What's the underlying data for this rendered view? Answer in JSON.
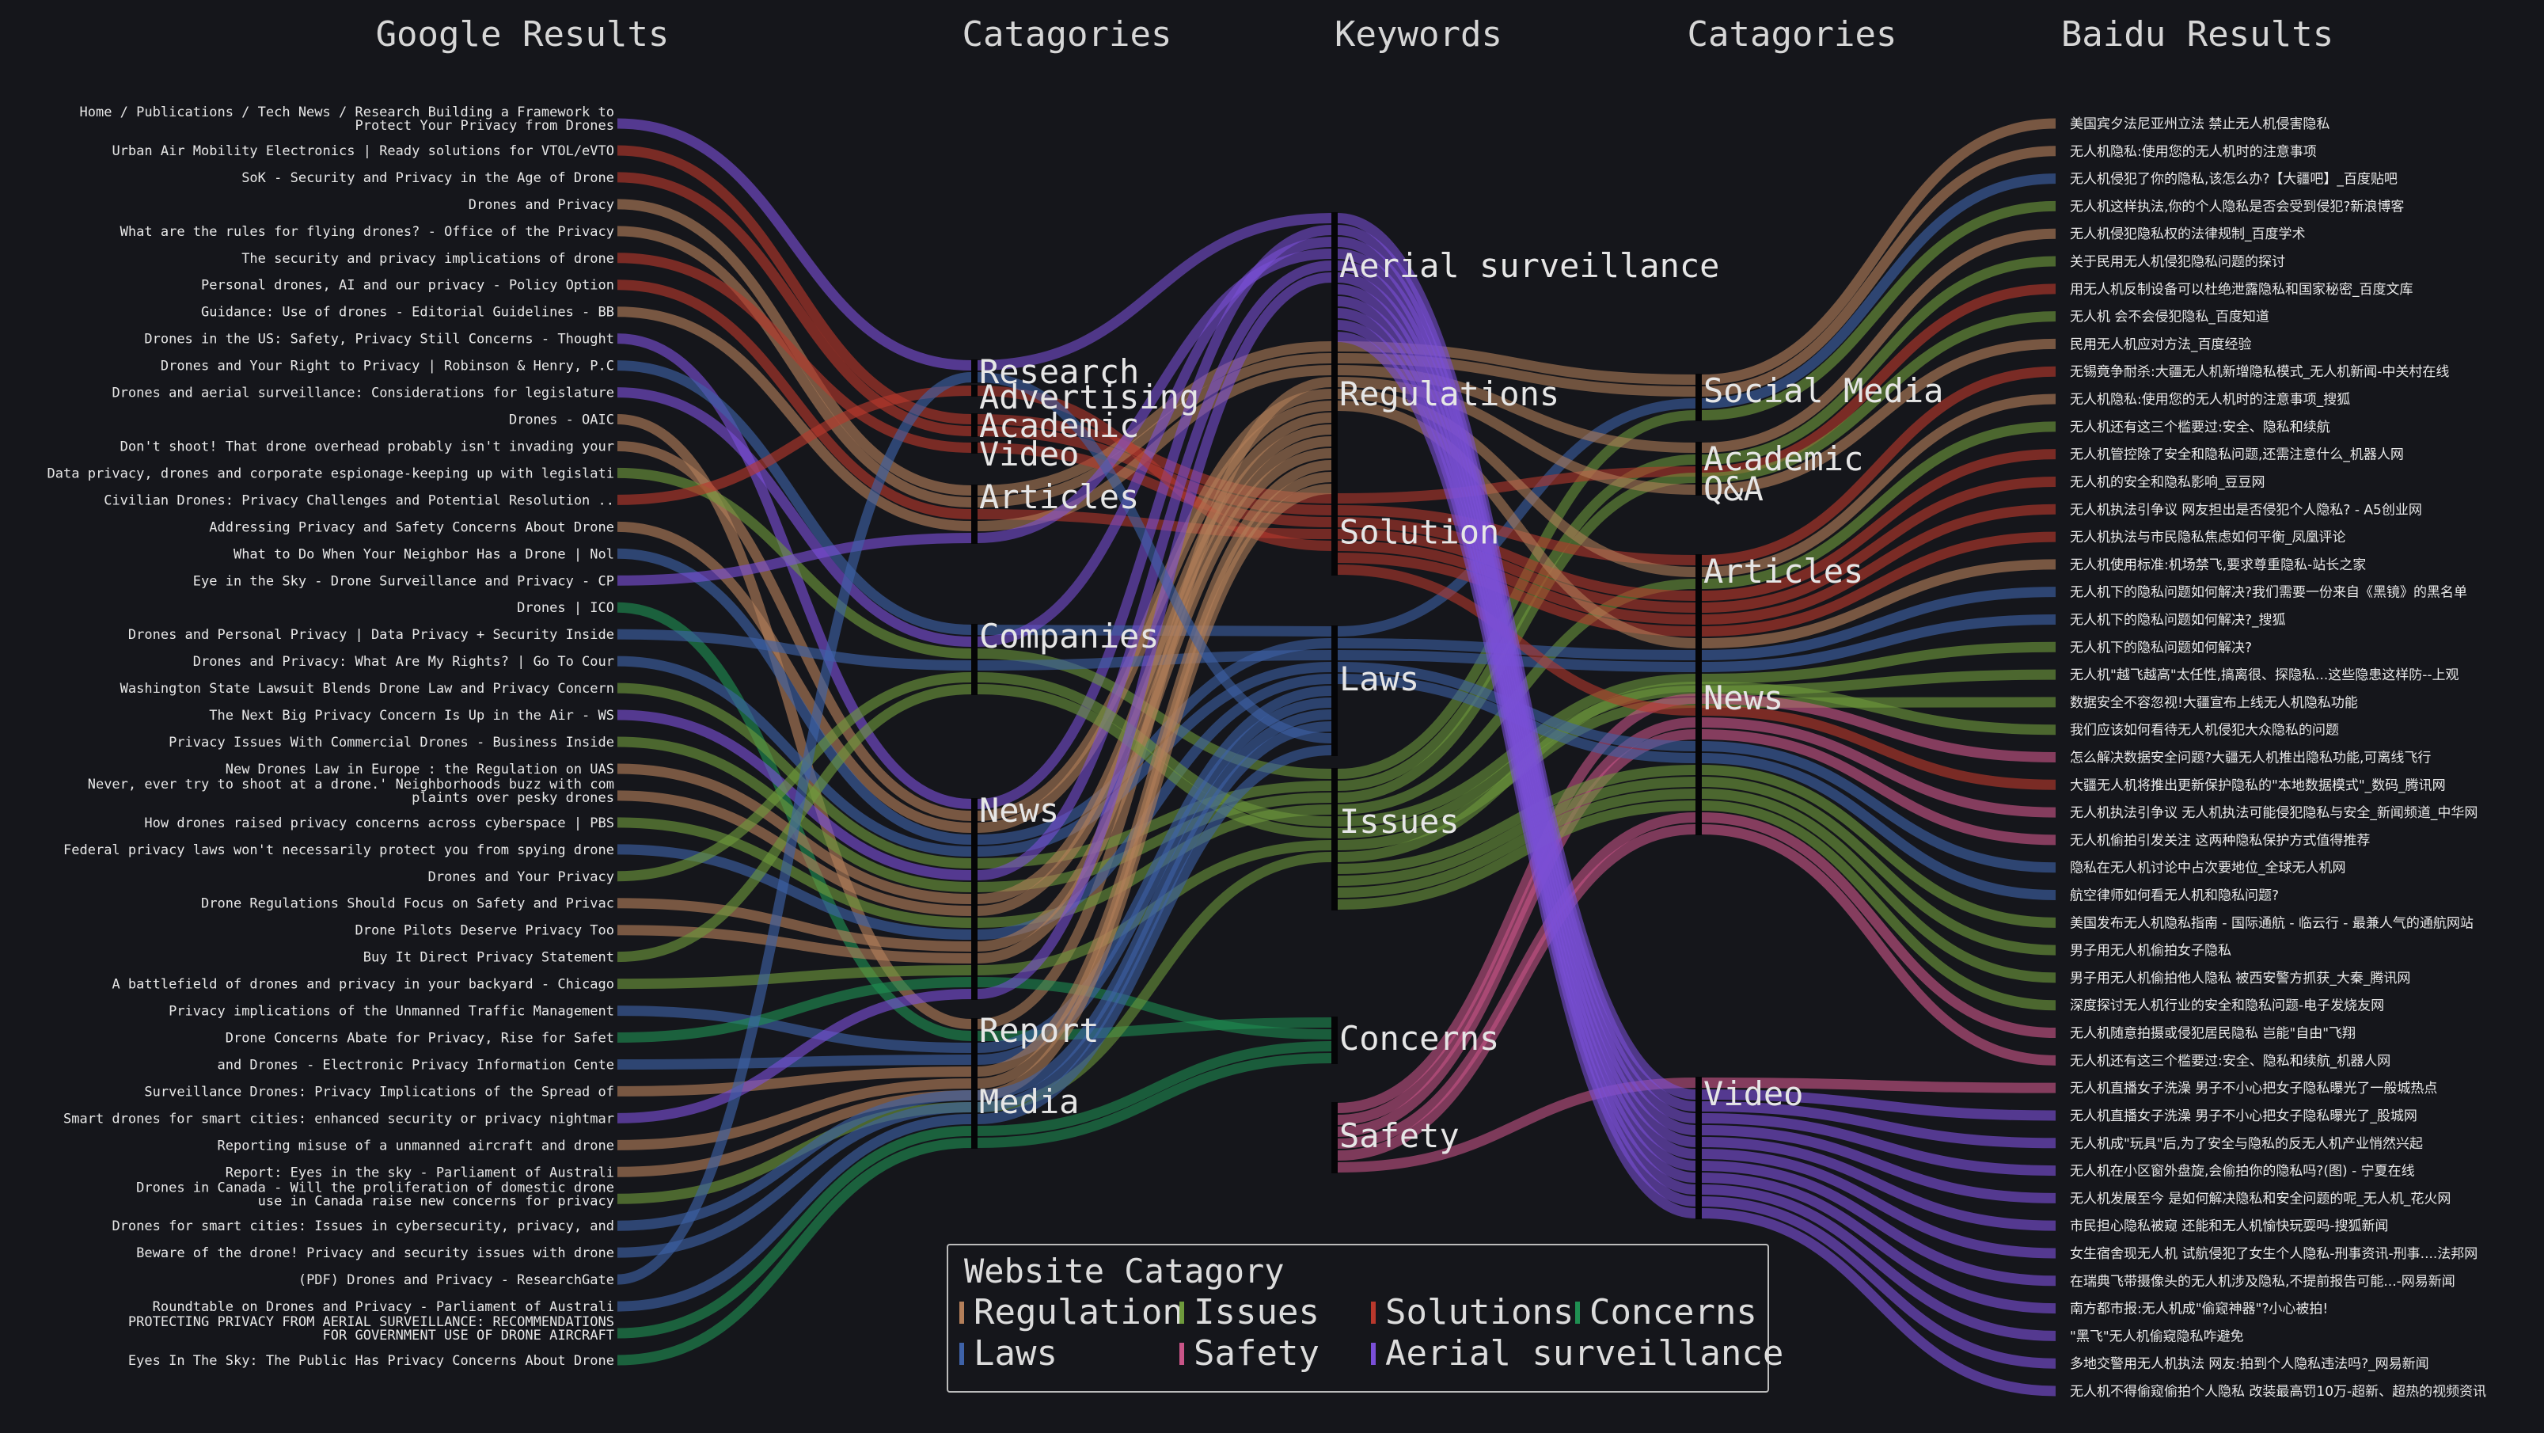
{
  "headers": {
    "google": "Google Results",
    "categories_left": "Catagories",
    "keywords": "Keywords",
    "categories_right": "Catagories",
    "baidu": "Baidu Results"
  },
  "colors": {
    "regulation": "#b47f5a",
    "issues": "#6e9a3c",
    "solutions": "#b8382c",
    "concerns": "#1f8f52",
    "laws": "#3e62a8",
    "safety": "#c95588",
    "aerial": "#7a4fd8"
  },
  "google_results": [
    {
      "lines": [
        "Home / Publications / Tech News / Research Building a Framework to",
        "Protect Your Privacy from Drones"
      ],
      "cat": 0,
      "kw": 0,
      "color": "aerial"
    },
    {
      "lines": [
        "Urban Air Mobility Electronics | Ready solutions for VTOL/eVTO"
      ],
      "cat": 2,
      "kw": 2,
      "color": "solutions"
    },
    {
      "lines": [
        "SoK - Security and Privacy in the Age of Drone"
      ],
      "cat": 2,
      "kw": 2,
      "color": "solutions"
    },
    {
      "lines": [
        "Drones and Privacy"
      ],
      "cat": 4,
      "kw": 1,
      "color": "regulation"
    },
    {
      "lines": [
        "What are the rules for flying drones? - Office of the Privacy"
      ],
      "cat": 4,
      "kw": 1,
      "color": "regulation"
    },
    {
      "lines": [
        "The security and privacy implications of drone"
      ],
      "cat": 3,
      "kw": 2,
      "color": "solutions"
    },
    {
      "lines": [
        "Personal drones, AI and our privacy - Policy Option"
      ],
      "cat": 4,
      "kw": 2,
      "color": "solutions"
    },
    {
      "lines": [
        "Guidance: Use of drones - Editorial Guidelines - BB"
      ],
      "cat": 4,
      "kw": 1,
      "color": "regulation"
    },
    {
      "lines": [
        "Drones in the US: Safety, Privacy Still Concerns - Thought"
      ],
      "cat": 6,
      "kw": 0,
      "color": "aerial"
    },
    {
      "lines": [
        "Drones and Your Right to Privacy | Robinson & Henry, P.C"
      ],
      "cat": 5,
      "kw": 3,
      "color": "laws"
    },
    {
      "lines": [
        "Drones and aerial surveillance: Considerations for legislature"
      ],
      "cat": 5,
      "kw": 0,
      "color": "aerial"
    },
    {
      "lines": [
        "Drones - OAIC"
      ],
      "cat": 7,
      "kw": 1,
      "color": "regulation"
    },
    {
      "lines": [
        "Don't shoot! That drone overhead probably isn't invading your"
      ],
      "cat": 6,
      "kw": 1,
      "color": "regulation"
    },
    {
      "lines": [
        "Data privacy, drones and corporate espionage-keeping up with legislati"
      ],
      "cat": 5,
      "kw": 4,
      "color": "issues"
    },
    {
      "lines": [
        "Civilian Drones: Privacy Challenges and Potential Resolution .."
      ],
      "cat": 1,
      "kw": 2,
      "color": "solutions"
    },
    {
      "lines": [
        "Addressing Privacy and Safety Concerns About Drone"
      ],
      "cat": 6,
      "kw": 1,
      "color": "regulation"
    },
    {
      "lines": [
        "What to Do When Your Neighbor Has a Drone | Nol"
      ],
      "cat": 6,
      "kw": 3,
      "color": "laws"
    },
    {
      "lines": [
        "Eye in the Sky - Drone Surveillance and Privacy - CP"
      ],
      "cat": 4,
      "kw": 0,
      "color": "aerial"
    },
    {
      "lines": [
        "Drones | ICO"
      ],
      "cat": 7,
      "kw": 5,
      "color": "concerns"
    },
    {
      "lines": [
        "Drones and Personal Privacy | Data Privacy + Security Inside"
      ],
      "cat": 5,
      "kw": 3,
      "color": "laws"
    },
    {
      "lines": [
        "Drones and Privacy: What Are My Rights? | Go To Cour"
      ],
      "cat": 6,
      "kw": 3,
      "color": "laws"
    },
    {
      "lines": [
        "Washington State Lawsuit Blends Drone Law and Privacy Concern"
      ],
      "cat": 6,
      "kw": 4,
      "color": "issues"
    },
    {
      "lines": [
        "The Next Big Privacy Concern Is Up in the Air - WS"
      ],
      "cat": 6,
      "kw": 0,
      "color": "aerial"
    },
    {
      "lines": [
        "Privacy Issues With Commercial Drones - Business Inside"
      ],
      "cat": 6,
      "kw": 4,
      "color": "issues"
    },
    {
      "lines": [
        "New Drones Law in Europe : the Regulation on UAS"
      ],
      "cat": 6,
      "kw": 1,
      "color": "regulation"
    },
    {
      "lines": [
        "Never, ever try to shoot at a drone.' Neighborhoods buzz with com",
        "plaints over pesky drones"
      ],
      "cat": 6,
      "kw": 1,
      "color": "regulation"
    },
    {
      "lines": [
        "How drones raised privacy concerns across cyberspace | PBS"
      ],
      "cat": 6,
      "kw": 4,
      "color": "issues"
    },
    {
      "lines": [
        "Federal privacy laws won't necessarily protect you from spying drone"
      ],
      "cat": 6,
      "kw": 3,
      "color": "laws"
    },
    {
      "lines": [
        "Drones and Your Privacy"
      ],
      "cat": 5,
      "kw": 4,
      "color": "issues"
    },
    {
      "lines": [
        "Drone Regulations Should Focus on Safety and Privac"
      ],
      "cat": 6,
      "kw": 1,
      "color": "regulation"
    },
    {
      "lines": [
        "Drone Pilots Deserve Privacy Too"
      ],
      "cat": 6,
      "kw": 1,
      "color": "regulation"
    },
    {
      "lines": [
        "Buy It Direct Privacy Statement"
      ],
      "cat": 5,
      "kw": 4,
      "color": "issues"
    },
    {
      "lines": [
        "A battlefield of drones and privacy in your backyard - Chicago"
      ],
      "cat": 6,
      "kw": 4,
      "color": "issues"
    },
    {
      "lines": [
        "Privacy implications of the Unmanned Traffic Management"
      ],
      "cat": 7,
      "kw": 3,
      "color": "laws"
    },
    {
      "lines": [
        "Drone Concerns Abate for Privacy, Rise for Safet"
      ],
      "cat": 6,
      "kw": 5,
      "color": "concerns"
    },
    {
      "lines": [
        "and Drones - Electronic Privacy Information Cente"
      ],
      "cat": 7,
      "kw": 3,
      "color": "laws"
    },
    {
      "lines": [
        "Surveillance Drones: Privacy Implications of the Spread of"
      ],
      "cat": 7,
      "kw": 1,
      "color": "regulation"
    },
    {
      "lines": [
        "Smart drones for smart cities: enhanced security or privacy nightmar"
      ],
      "cat": 6,
      "kw": 0,
      "color": "aerial"
    },
    {
      "lines": [
        "Reporting misuse of a unmanned aircraft and drone"
      ],
      "cat": 7,
      "kw": 1,
      "color": "regulation"
    },
    {
      "lines": [
        "Report: Eyes in the sky - Parliament of Australi"
      ],
      "cat": 7,
      "kw": 1,
      "color": "regulation"
    },
    {
      "lines": [
        "Drones in Canada - Will the proliferation of domestic drone",
        "use in Canada raise new concerns for privacy"
      ],
      "cat": 7,
      "kw": 4,
      "color": "issues"
    },
    {
      "lines": [
        "Drones for smart cities: Issues in cybersecurity, privacy, and"
      ],
      "cat": 8,
      "kw": 3,
      "color": "laws"
    },
    {
      "lines": [
        "Beware of the drone! Privacy and security issues with drone"
      ],
      "cat": 8,
      "kw": 3,
      "color": "laws"
    },
    {
      "lines": [
        "(PDF) Drones and Privacy - ResearchGate"
      ],
      "cat": 0,
      "kw": 3,
      "color": "laws"
    },
    {
      "lines": [
        "Roundtable on Drones and Privacy - Parliament of Australi"
      ],
      "cat": 8,
      "kw": 3,
      "color": "laws"
    },
    {
      "lines": [
        "PROTECTING PRIVACY FROM AERIAL SURVEILLANCE: RECOMMENDATIONS",
        "FOR GOVERNMENT USE OF DRONE AIRCRAFT"
      ],
      "cat": 8,
      "kw": 5,
      "color": "concerns"
    },
    {
      "lines": [
        "Eyes In The Sky: The Public Has Privacy Concerns About Drone"
      ],
      "cat": 8,
      "kw": 5,
      "color": "concerns"
    }
  ],
  "left_categories": [
    "Research",
    "Advertising",
    "Academic",
    "Video",
    "Articles",
    "Companies",
    "News",
    "Report",
    "Media"
  ],
  "keywords": [
    "Aerial surveillance",
    "Regulations",
    "Solution",
    "Laws",
    "Issues",
    "Concerns",
    "Safety"
  ],
  "right_categories": [
    "Social Media",
    "Academic",
    "Q&A",
    "Articles",
    "News",
    "Video"
  ],
  "baidu_results": [
    {
      "text": "美国宾夕法尼亚州立法 禁止无人机侵害隐私",
      "cat": 0,
      "kw": 1,
      "color": "regulation"
    },
    {
      "text": "无人机隐私:使用您的无人机时的注意事项",
      "cat": 0,
      "kw": 1,
      "color": "regulation"
    },
    {
      "text": "无人机侵犯了你的隐私,该怎么办?【大疆吧】_百度贴吧",
      "cat": 0,
      "kw": 3,
      "color": "laws"
    },
    {
      "text": "无人机这样执法,你的个人隐私是否会受到侵犯?新浪博客",
      "cat": 0,
      "kw": 4,
      "color": "issues"
    },
    {
      "text": "无人机侵犯隐私权的法律规制_百度学术",
      "cat": 1,
      "kw": 1,
      "color": "regulation"
    },
    {
      "text": "关于民用无人机侵犯隐私问题的探讨",
      "cat": 1,
      "kw": 4,
      "color": "issues"
    },
    {
      "text": "用无人机反制设备可以杜绝泄露隐私和国家秘密_百度文库",
      "cat": 1,
      "kw": 2,
      "color": "solutions"
    },
    {
      "text": "无人机 会不会侵犯隐私_百度知道",
      "cat": 2,
      "kw": 4,
      "color": "issues"
    },
    {
      "text": "民用无人机应对方法_百度经验",
      "cat": 2,
      "kw": 1,
      "color": "regulation"
    },
    {
      "text": "无锡竟争耐杀:大疆无人机新增隐私模式_无人机新闻-中关村在线",
      "cat": 3,
      "kw": 2,
      "color": "solutions"
    },
    {
      "text": "无人机隐私:使用您的无人机时的注意事项_搜狐",
      "cat": 3,
      "kw": 1,
      "color": "regulation"
    },
    {
      "text": "无人机还有这三个槛要过:安全、隐私和续航",
      "cat": 3,
      "kw": 4,
      "color": "issues"
    },
    {
      "text": "无人机管控除了安全和隐私问题,还需注意什么_机器人网",
      "cat": 3,
      "kw": 2,
      "color": "solutions"
    },
    {
      "text": "无人机的安全和隐私影响_豆豆网",
      "cat": 3,
      "kw": 2,
      "color": "solutions"
    },
    {
      "text": "无人机执法引争议 网友担出是否侵犯个人隐私? - A5创业网",
      "cat": 3,
      "kw": 2,
      "color": "solutions"
    },
    {
      "text": "无人机执法与市民隐私焦虑如何平衡_凤凰评论",
      "cat": 3,
      "kw": 2,
      "color": "solutions"
    },
    {
      "text": "无人机使用标准:机场禁飞,要求尊重隐私-站长之家",
      "cat": 3,
      "kw": 1,
      "color": "regulation"
    },
    {
      "text": "无人机下的隐私问题如何解决?我们需要一份来自《黑镜》的黑名单",
      "cat": 3,
      "kw": 3,
      "color": "laws"
    },
    {
      "text": "无人机下的隐私问题如何解决?_搜狐",
      "cat": 3,
      "kw": 3,
      "color": "laws"
    },
    {
      "text": "无人机下的隐私问题如何解决?",
      "cat": 3,
      "kw": 4,
      "color": "issues"
    },
    {
      "text": "无人机\"越飞越高\"太任性,搞离很、探隐私...这些隐患这样防--上观",
      "cat": 3,
      "kw": 4,
      "color": "issues"
    },
    {
      "text": "数据安全不容忽视!大疆宣布上线无人机隐私功能",
      "cat": 3,
      "kw": 4,
      "color": "issues"
    },
    {
      "text": "我们应该如何看待无人机侵犯大众隐私的问题",
      "cat": 4,
      "kw": 4,
      "color": "issues"
    },
    {
      "text": "怎么解决数据安全问题?大疆无人机推出隐私功能,可离线飞行",
      "cat": 4,
      "kw": 6,
      "color": "safety"
    },
    {
      "text": "大疆无人机将推出更新保护隐私的\"本地数据模式\"_数码_腾讯网",
      "cat": 4,
      "kw": 2,
      "color": "solutions"
    },
    {
      "text": "无人机执法引争议 无人机执法可能侵犯隐私与安全_新闻频道_中华网",
      "cat": 4,
      "kw": 6,
      "color": "safety"
    },
    {
      "text": "无人机偷拍引发关注 这两种隐私保护方式值得推荐",
      "cat": 4,
      "kw": 6,
      "color": "safety"
    },
    {
      "text": "隐私在无人机讨论中占次要地位_全球无人机网",
      "cat": 4,
      "kw": 3,
      "color": "laws"
    },
    {
      "text": "航空律师如何看无人机和隐私问题?",
      "cat": 4,
      "kw": 3,
      "color": "laws"
    },
    {
      "text": "美国发布无人机隐私指南 - 国际通航 - 临云行 - 最兼人气的通航网站",
      "cat": 4,
      "kw": 4,
      "color": "issues"
    },
    {
      "text": "男子用无人机偷拍女子隐私",
      "cat": 4,
      "kw": 4,
      "color": "issues"
    },
    {
      "text": "男子用无人机偷拍他人隐私 被西安警方抓获_大秦_腾讯网",
      "cat": 4,
      "kw": 4,
      "color": "issues"
    },
    {
      "text": "深度探讨无人机行业的安全和隐私问题-电子发烧友网",
      "cat": 4,
      "kw": 4,
      "color": "issues"
    },
    {
      "text": "无人机随意拍摄或侵犯居民隐私 岂能\"自由\"飞翔",
      "cat": 4,
      "kw": 6,
      "color": "safety"
    },
    {
      "text": "无人机还有这三个槛要过:安全、隐私和续航_机器人网",
      "cat": 4,
      "kw": 6,
      "color": "safety"
    },
    {
      "text": "无人机直播女子洗澡 男子不小心把女子隐私曝光了一般城热点",
      "cat": 5,
      "kw": 6,
      "color": "safety"
    },
    {
      "text": "无人机直播女子洗澡 男子不小心把女子隐私曝光了_股城网",
      "cat": 5,
      "kw": 0,
      "color": "aerial"
    },
    {
      "text": "无人机成\"玩具\"后,为了安全与隐私的反无人机产业悄然兴起",
      "cat": 5,
      "kw": 0,
      "color": "aerial"
    },
    {
      "text": "无人机在小区窗外盘旋,会偷拍你的隐私吗?(图) - 宁夏在线",
      "cat": 5,
      "kw": 0,
      "color": "aerial"
    },
    {
      "text": "无人机发展至今 是如何解决隐私和安全问题的呢_无人机_花火网",
      "cat": 5,
      "kw": 0,
      "color": "aerial"
    },
    {
      "text": "市民担心隐私被窥 还能和无人机愉快玩耍吗-搜狐新闻",
      "cat": 5,
      "kw": 0,
      "color": "aerial"
    },
    {
      "text": "女生宿舍现无人机 试航侵犯了女生个人隐私-刑事资讯-刑事....法邦网",
      "cat": 5,
      "kw": 0,
      "color": "aerial"
    },
    {
      "text": "在瑞典飞带摄像头的无人机涉及隐私,不提前报告可能...-网易新闻",
      "cat": 5,
      "kw": 0,
      "color": "aerial"
    },
    {
      "text": "南方都市报:无人机成\"偷窥神器\"?小心被拍!",
      "cat": 5,
      "kw": 0,
      "color": "aerial"
    },
    {
      "text": "\"黑飞\"无人机偷窥隐私咋避免",
      "cat": 5,
      "kw": 0,
      "color": "aerial"
    },
    {
      "text": "多地交警用无人机执法 网友:拍到个人隐私违法吗?_网易新闻",
      "cat": 5,
      "kw": 0,
      "color": "aerial"
    },
    {
      "text": "无人机不得偷窥偷拍个人隐私 改装最高罚10万-超新、超热的视频资讯",
      "cat": 5,
      "kw": 0,
      "color": "aerial"
    }
  ],
  "legend": {
    "title": "Website Catagory",
    "items": [
      {
        "label": "Regulation",
        "color": "regulation"
      },
      {
        "label": "Issues",
        "color": "issues"
      },
      {
        "label": "Solutions",
        "color": "solutions"
      },
      {
        "label": "Concerns",
        "color": "concerns"
      },
      {
        "label": "Laws",
        "color": "laws"
      },
      {
        "label": "Safety",
        "color": "safety"
      },
      {
        "label": "Aerial surveillance",
        "color": "aerial"
      }
    ]
  }
}
